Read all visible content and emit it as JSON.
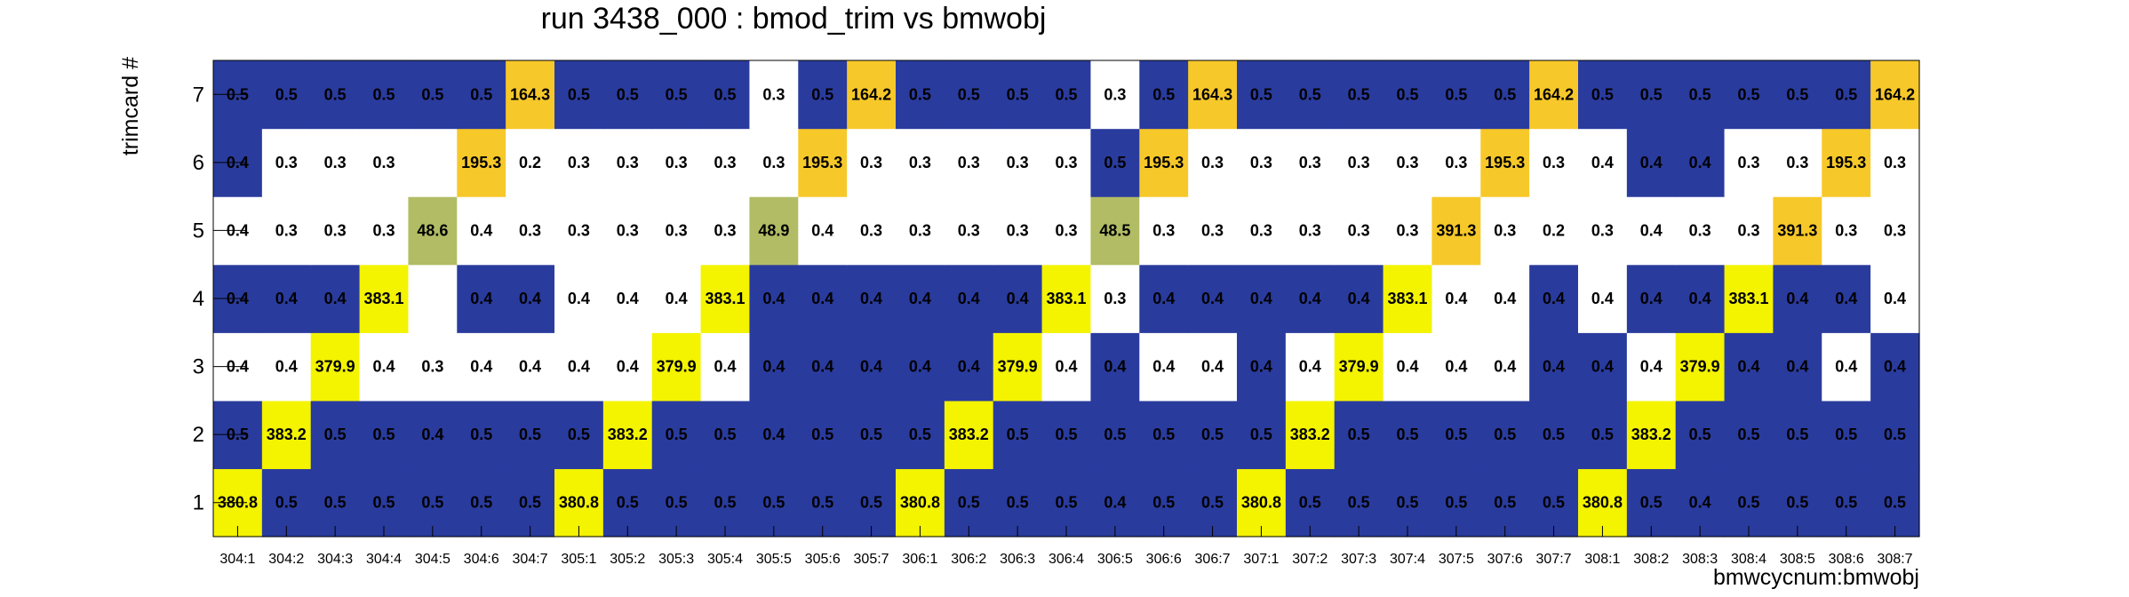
{
  "chart_data": {
    "type": "heatmap",
    "title": "run 3438_000 : bmod_trim vs bmwobj",
    "xlabel": "bmwcycnum:bmwobj",
    "ylabel": "trimcard #",
    "x": [
      "304:1",
      "304:2",
      "304:3",
      "304:4",
      "304:5",
      "304:6",
      "304:7",
      "305:1",
      "305:2",
      "305:3",
      "305:4",
      "305:5",
      "305:6",
      "305:7",
      "306:1",
      "306:2",
      "306:3",
      "306:4",
      "306:5",
      "306:6",
      "306:7",
      "307:1",
      "307:2",
      "307:3",
      "307:4",
      "307:5",
      "307:6",
      "307:7",
      "308:1",
      "308:2",
      "308:3",
      "308:4",
      "308:5",
      "308:6",
      "308:7"
    ],
    "y": [
      "1",
      "2",
      "3",
      "4",
      "5",
      "6",
      "7"
    ],
    "values": [
      [
        "380.8",
        "0.5",
        "0.5",
        "0.5",
        "0.5",
        "0.5",
        "0.5",
        "380.8",
        "0.5",
        "0.5",
        "0.5",
        "0.5",
        "0.5",
        "0.5",
        "380.8",
        "0.5",
        "0.5",
        "0.5",
        "0.4",
        "0.5",
        "0.5",
        "380.8",
        "0.5",
        "0.5",
        "0.5",
        "0.5",
        "0.5",
        "0.5",
        "380.8",
        "0.5",
        "0.4",
        "0.5",
        "0.5",
        "0.5",
        "0.5"
      ],
      [
        "0.5",
        "383.2",
        "0.5",
        "0.5",
        "0.4",
        "0.5",
        "0.5",
        "0.5",
        "383.2",
        "0.5",
        "0.5",
        "0.4",
        "0.5",
        "0.5",
        "0.5",
        "383.2",
        "0.5",
        "0.5",
        "0.5",
        "0.5",
        "0.5",
        "0.5",
        "383.2",
        "0.5",
        "0.5",
        "0.5",
        "0.5",
        "0.5",
        "0.5",
        "383.2",
        "0.5",
        "0.5",
        "0.5",
        "0.5",
        "0.5"
      ],
      [
        "0.4",
        "0.4",
        "379.9",
        "0.4",
        "0.3",
        "0.4",
        "0.4",
        "0.4",
        "0.4",
        "379.9",
        "0.4",
        "0.4",
        "0.4",
        "0.4",
        "0.4",
        "0.4",
        "379.9",
        "0.4",
        "0.4",
        "0.4",
        "0.4",
        "0.4",
        "0.4",
        "379.9",
        "0.4",
        "0.4",
        "0.4",
        "0.4",
        "0.4",
        "0.4",
        "379.9",
        "0.4",
        "0.4",
        "0.4",
        "0.4"
      ],
      [
        "0.4",
        "0.4",
        "0.4",
        "383.1",
        "",
        "0.4",
        "0.4",
        "0.4",
        "0.4",
        "0.4",
        "383.1",
        "0.4",
        "0.4",
        "0.4",
        "0.4",
        "0.4",
        "0.4",
        "383.1",
        "0.3",
        "0.4",
        "0.4",
        "0.4",
        "0.4",
        "0.4",
        "383.1",
        "0.4",
        "0.4",
        "0.4",
        "0.4",
        "0.4",
        "0.4",
        "383.1",
        "0.4",
        "0.4",
        "0.4"
      ],
      [
        "0.4",
        "0.3",
        "0.3",
        "0.3",
        "48.6",
        "0.4",
        "0.3",
        "0.3",
        "0.3",
        "0.3",
        "0.3",
        "48.9",
        "0.4",
        "0.3",
        "0.3",
        "0.3",
        "0.3",
        "0.3",
        "48.5",
        "0.3",
        "0.3",
        "0.3",
        "0.3",
        "0.3",
        "0.3",
        "391.3",
        "0.3",
        "0.2",
        "0.3",
        "0.4",
        "0.3",
        "0.3",
        "391.3",
        "0.3",
        "0.3"
      ],
      [
        "0.4",
        "0.3",
        "0.3",
        "0.3",
        "",
        "195.3",
        "0.2",
        "0.3",
        "0.3",
        "0.3",
        "0.3",
        "0.3",
        "195.3",
        "0.3",
        "0.3",
        "0.3",
        "0.3",
        "0.3",
        "0.5",
        "195.3",
        "0.3",
        "0.3",
        "0.3",
        "0.3",
        "0.3",
        "0.3",
        "195.3",
        "0.3",
        "0.4",
        "0.4",
        "0.4",
        "0.3",
        "0.3",
        "195.3",
        "0.3"
      ],
      [
        "0.5",
        "0.5",
        "0.5",
        "0.5",
        "0.5",
        "0.5",
        "164.3",
        "0.5",
        "0.5",
        "0.5",
        "0.5",
        "0.3",
        "0.5",
        "164.2",
        "0.5",
        "0.5",
        "0.5",
        "0.5",
        "0.3",
        "0.5",
        "164.3",
        "0.5",
        "0.5",
        "0.5",
        "0.5",
        "0.5",
        "0.5",
        "164.2",
        "0.5",
        "0.5",
        "0.5",
        "0.5",
        "0.5",
        "0.5",
        "164.2"
      ]
    ],
    "fill_colors": [
      [
        "#f4f300",
        "#2a3b9e",
        "#2a3b9e",
        "#2a3b9e",
        "#2a3b9e",
        "#2a3b9e",
        "#2a3b9e",
        "#f4f300",
        "#2a3b9e",
        "#2a3b9e",
        "#2a3b9e",
        "#2a3b9e",
        "#2a3b9e",
        "#2a3b9e",
        "#f4f300",
        "#2a3b9e",
        "#2a3b9e",
        "#2a3b9e",
        "#2a3b9e",
        "#2a3b9e",
        "#2a3b9e",
        "#f4f300",
        "#2a3b9e",
        "#2a3b9e",
        "#2a3b9e",
        "#2a3b9e",
        "#2a3b9e",
        "#2a3b9e",
        "#f4f300",
        "#2a3b9e",
        "#2a3b9e",
        "#2a3b9e",
        "#2a3b9e",
        "#2a3b9e",
        "#2a3b9e"
      ],
      [
        "#2a3b9e",
        "#f4f300",
        "#2a3b9e",
        "#2a3b9e",
        "#2a3b9e",
        "#2a3b9e",
        "#2a3b9e",
        "#2a3b9e",
        "#f4f300",
        "#2a3b9e",
        "#2a3b9e",
        "#2a3b9e",
        "#2a3b9e",
        "#2a3b9e",
        "#2a3b9e",
        "#f4f300",
        "#2a3b9e",
        "#2a3b9e",
        "#2a3b9e",
        "#2a3b9e",
        "#2a3b9e",
        "#2a3b9e",
        "#f4f300",
        "#2a3b9e",
        "#2a3b9e",
        "#2a3b9e",
        "#2a3b9e",
        "#2a3b9e",
        "#2a3b9e",
        "#f4f300",
        "#2a3b9e",
        "#2a3b9e",
        "#2a3b9e",
        "#2a3b9e",
        "#2a3b9e"
      ],
      [
        "#ffffff",
        "#ffffff",
        "#f4f300",
        "#ffffff",
        "#ffffff",
        "#ffffff",
        "#ffffff",
        "#ffffff",
        "#ffffff",
        "#f4f300",
        "#ffffff",
        "#2a3b9e",
        "#2a3b9e",
        "#2a3b9e",
        "#2a3b9e",
        "#2a3b9e",
        "#f4f300",
        "#ffffff",
        "#2a3b9e",
        "#ffffff",
        "#ffffff",
        "#2a3b9e",
        "#ffffff",
        "#f4f300",
        "#ffffff",
        "#ffffff",
        "#ffffff",
        "#2a3b9e",
        "#2a3b9e",
        "#ffffff",
        "#f4f300",
        "#2a3b9e",
        "#2a3b9e",
        "#ffffff",
        "#2a3b9e"
      ],
      [
        "#2a3b9e",
        "#2a3b9e",
        "#2a3b9e",
        "#f4f300",
        "#ffffff",
        "#2a3b9e",
        "#2a3b9e",
        "#ffffff",
        "#ffffff",
        "#ffffff",
        "#f4f300",
        "#2a3b9e",
        "#2a3b9e",
        "#2a3b9e",
        "#2a3b9e",
        "#2a3b9e",
        "#2a3b9e",
        "#f4f300",
        "#ffffff",
        "#2a3b9e",
        "#2a3b9e",
        "#2a3b9e",
        "#2a3b9e",
        "#2a3b9e",
        "#f4f300",
        "#ffffff",
        "#ffffff",
        "#2a3b9e",
        "#ffffff",
        "#2a3b9e",
        "#2a3b9e",
        "#f4f300",
        "#2a3b9e",
        "#2a3b9e",
        "#ffffff"
      ],
      [
        "#ffffff",
        "#ffffff",
        "#ffffff",
        "#ffffff",
        "#b2bc64",
        "#ffffff",
        "#ffffff",
        "#ffffff",
        "#ffffff",
        "#ffffff",
        "#ffffff",
        "#b2bc64",
        "#ffffff",
        "#ffffff",
        "#ffffff",
        "#ffffff",
        "#ffffff",
        "#ffffff",
        "#b2bc64",
        "#ffffff",
        "#ffffff",
        "#ffffff",
        "#ffffff",
        "#ffffff",
        "#ffffff",
        "#f7c829",
        "#ffffff",
        "#ffffff",
        "#ffffff",
        "#ffffff",
        "#ffffff",
        "#ffffff",
        "#f7c829",
        "#ffffff",
        "#ffffff"
      ],
      [
        "#2a3b9e",
        "#ffffff",
        "#ffffff",
        "#ffffff",
        "#ffffff",
        "#f7c829",
        "#ffffff",
        "#ffffff",
        "#ffffff",
        "#ffffff",
        "#ffffff",
        "#ffffff",
        "#f7c829",
        "#ffffff",
        "#ffffff",
        "#ffffff",
        "#ffffff",
        "#ffffff",
        "#2a3b9e",
        "#f7c829",
        "#ffffff",
        "#ffffff",
        "#ffffff",
        "#ffffff",
        "#ffffff",
        "#ffffff",
        "#f7c829",
        "#ffffff",
        "#ffffff",
        "#2a3b9e",
        "#2a3b9e",
        "#ffffff",
        "#ffffff",
        "#f7c829",
        "#ffffff"
      ],
      [
        "#2a3b9e",
        "#2a3b9e",
        "#2a3b9e",
        "#2a3b9e",
        "#2a3b9e",
        "#2a3b9e",
        "#f7c829",
        "#2a3b9e",
        "#2a3b9e",
        "#2a3b9e",
        "#2a3b9e",
        "#ffffff",
        "#2a3b9e",
        "#f7c829",
        "#2a3b9e",
        "#2a3b9e",
        "#2a3b9e",
        "#2a3b9e",
        "#ffffff",
        "#2a3b9e",
        "#f7c829",
        "#2a3b9e",
        "#2a3b9e",
        "#2a3b9e",
        "#2a3b9e",
        "#2a3b9e",
        "#2a3b9e",
        "#f7c829",
        "#2a3b9e",
        "#2a3b9e",
        "#2a3b9e",
        "#2a3b9e",
        "#2a3b9e",
        "#2a3b9e",
        "#f7c829"
      ]
    ],
    "grid": false
  }
}
